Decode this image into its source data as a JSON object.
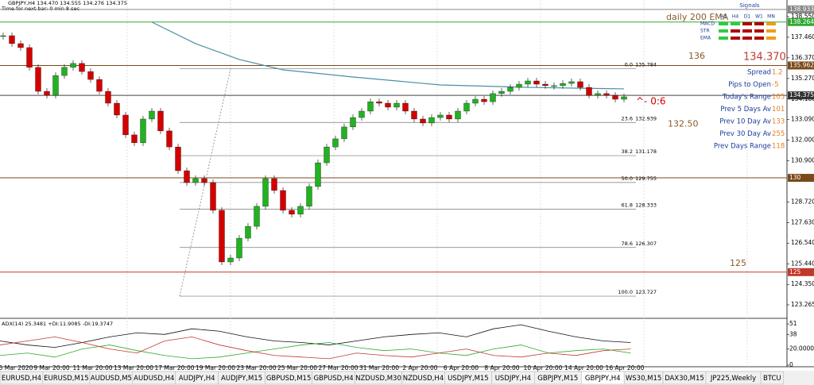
{
  "header": {
    "quote": "GBPJPY,H4  134.470 134.555 134.276 134.375",
    "timer": "Time for next bar: 0 min 8 sec"
  },
  "chart_data": {
    "type": "candlestick",
    "closes": [
      137.54,
      137.12,
      136.91,
      135.86,
      134.59,
      134.38,
      135.43,
      135.86,
      136.07,
      135.64,
      135.22,
      134.59,
      133.96,
      133.33,
      132.28,
      131.86,
      133.12,
      133.54,
      132.49,
      131.64,
      130.38,
      129.75,
      129.96,
      129.75,
      128.28,
      125.54,
      125.75,
      126.8,
      127.43,
      128.49,
      129.96,
      129.33,
      128.28,
      128.07,
      128.49,
      129.54,
      130.8,
      131.64,
      132.07,
      132.7,
      133.2,
      133.54,
      134.04,
      133.96,
      133.75,
      133.96,
      133.54,
      133.12,
      132.91,
      133.2,
      133.33,
      133.12,
      133.54,
      133.96,
      134.17,
      134.04,
      134.47,
      134.59,
      134.8,
      134.97,
      135.14,
      134.97,
      134.89,
      134.89,
      135.01,
      135.1,
      134.8,
      134.38,
      134.47,
      134.38,
      134.17,
      134.3
    ],
    "up_color": "#22b222",
    "down_color": "#d40000",
    "ema200": {
      "x": [
        17,
        22,
        27,
        32,
        40,
        50,
        60,
        71
      ],
      "values": [
        138.26,
        137.12,
        136.28,
        135.73,
        135.35,
        134.93,
        134.8,
        134.72
      ],
      "color": "#4a90a4"
    },
    "ylim": [
      122.592,
      139.434
    ],
    "yticks": [
      {
        "value": 138.55,
        "label": "138.550"
      },
      {
        "value": 137.46,
        "label": "137.460"
      },
      {
        "value": 136.37,
        "label": "136.370"
      },
      {
        "value": 135.27,
        "label": "135.270"
      },
      {
        "value": 134.18,
        "label": "134.180"
      },
      {
        "value": 133.09,
        "label": "133.090"
      },
      {
        "value": 132.0,
        "label": "132.000"
      },
      {
        "value": 130.9,
        "label": "130.900"
      },
      {
        "value": 128.72,
        "label": "128.720"
      },
      {
        "value": 127.63,
        "label": "127.630"
      },
      {
        "value": 126.54,
        "label": "126.540"
      },
      {
        "value": 125.44,
        "label": "125.440"
      },
      {
        "value": 124.35,
        "label": "124.350"
      },
      123.265
    ],
    "levels": [
      {
        "value": 138.933,
        "color": "#888888"
      },
      {
        "value": 138.264,
        "color": "#33aa33"
      },
      {
        "value": 135.962,
        "color": "#7a4a1a"
      },
      {
        "value": 134.375,
        "color": "#444444"
      },
      {
        "value": 130.0,
        "label": "130.000",
        "color": "#7a4a1a"
      },
      {
        "value": 125.0,
        "label": "125.000",
        "color": "#c0392b"
      }
    ],
    "fib": [
      {
        "pct": {
          "value": 0,
          "label": "0.0"
        },
        "price": 135.784
      },
      {
        "pct": 23.6,
        "price": 132.939
      },
      {
        "pct": 38.2,
        "price": 131.178
      },
      {
        "pct": {
          "value": 50,
          "label": "50.0"
        },
        "price": 129.755
      },
      {
        "pct": 61.8,
        "price": 128.333
      },
      {
        "pct": 78.6,
        "price": 126.307
      },
      {
        "pct": {
          "value": 100,
          "label": "100.0"
        },
        "price": 123.727
      }
    ],
    "annotations": [
      {
        "text": "136",
        "price": 136.2
      },
      {
        "text": "132.50",
        "price": 132.6
      },
      {
        "text": "125",
        "price": 125.2
      }
    ],
    "x_labels": [
      "5 Mar 2020",
      "9 Mar 20:00",
      "11 Mar 20:00",
      "13 Mar 20:00",
      "17 Mar 20:00",
      "19 Mar 20:00",
      "23 Mar 20:00",
      "25 Mar 20:00",
      "27 Mar 20:00",
      "31 Mar 20:00",
      "2 Apr 20:00",
      "6 Apr 20:00",
      "8 Apr 20:00",
      "10 Apr 20:00",
      "14 Apr 20:00",
      "16 Apr 20:00"
    ],
    "arrow_label": "^- 0:6"
  },
  "adx": {
    "title": "ADX(14) 25.3481 +DI:11.9085 -DI:19.3747",
    "ylim": [
      0,
      56
    ],
    "yticks": [
      51,
      38,
      {
        "value": 20,
        "label": "20.0000"
      },
      0
    ],
    "series": [
      {
        "color": "#111111",
        "values": [
          30,
          25,
          22,
          28,
          35,
          40,
          38,
          45,
          42,
          35,
          30,
          28,
          25,
          30,
          35,
          38,
          40,
          35,
          45,
          50,
          42,
          35,
          30,
          28
        ]
      },
      {
        "color": "#2ea82e",
        "values": [
          12,
          15,
          10,
          20,
          25,
          18,
          12,
          8,
          10,
          15,
          20,
          25,
          28,
          22,
          18,
          20,
          15,
          12,
          20,
          25,
          15,
          18,
          20,
          15
        ]
      },
      {
        "color": "#c0392b",
        "values": [
          25,
          30,
          35,
          28,
          20,
          15,
          30,
          35,
          25,
          18,
          12,
          10,
          8,
          15,
          12,
          10,
          15,
          20,
          12,
          10,
          15,
          12,
          18,
          20
        ]
      }
    ]
  },
  "panel": {
    "ema_note": "daily 200 EMA",
    "signals_title": "Signals",
    "timeframes": [
      "H1",
      "H4",
      "D1",
      "W1",
      "MN"
    ],
    "signals": [
      {
        "name": "MACD",
        "colors": [
          "#2ecc40",
          "#2ecc40",
          "#b00000",
          "#b00000",
          "#f39c12"
        ]
      },
      {
        "name": "STR",
        "colors": [
          "#2ecc40",
          "#b00000",
          "#b00000",
          "#b00000",
          "#f39c12"
        ]
      },
      {
        "name": "EMA",
        "colors": [
          "#2ecc40",
          "#b00000",
          "#b00000",
          "#b00000",
          "#f39c12"
        ]
      }
    ],
    "price": "134.370",
    "stats": [
      {
        "label": "Spread",
        "value": 1.2
      },
      {
        "label": "Pips to Open",
        "value": -5
      },
      {
        "label": "Today's Range",
        "value": 105
      },
      {
        "label": "Prev 5 Days Av",
        "value": 101
      },
      {
        "label": "Prev 10 Day Av",
        "value": 133
      },
      {
        "label": "Prev 30 Day Av",
        "value": 255
      },
      {
        "label": "Prev Days Range",
        "value": 118
      }
    ]
  },
  "tabs": {
    "items": [
      "EURUSD,H4",
      "EURUSD,M15",
      "AUDUSD,M5",
      "AUDUSD,H4",
      "AUDJPY,H4",
      "AUDJPY,M15",
      "GBPUSD,M15",
      "GBPUSD,H4",
      "NZDUSD,M30",
      "NZDUSD,H4",
      "USDJPY,M15",
      "USDJPY,H4",
      "GBPJPY,M15",
      "GBPJPY,H4",
      "WS30,M15",
      "DAX30,M15",
      "JP225,Weekly",
      "BTCU"
    ],
    "active": 13
  }
}
